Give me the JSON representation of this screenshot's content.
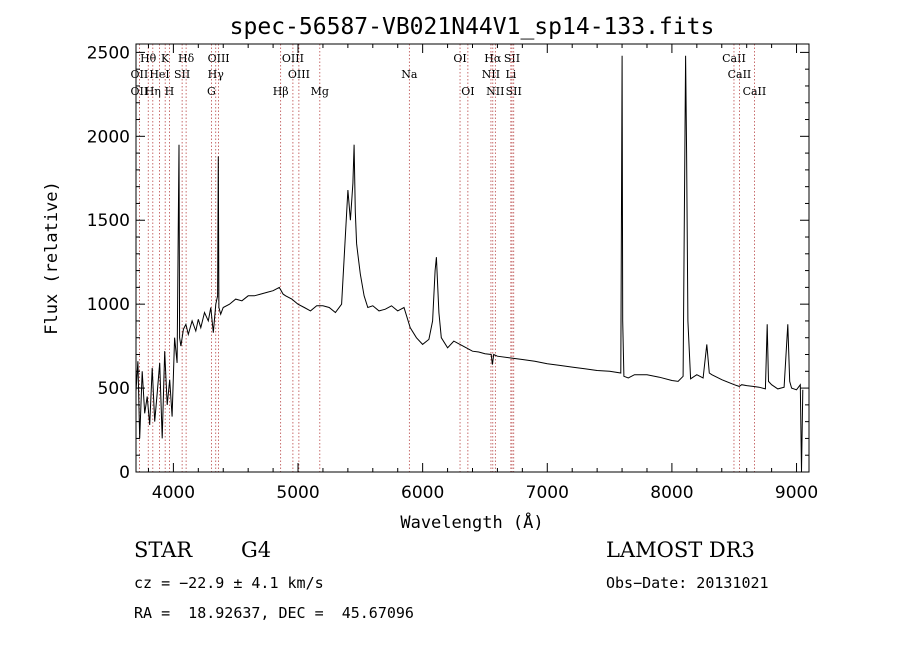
{
  "chart_data": {
    "type": "line",
    "title": "spec-56587-VB021N44V1_sp14-133.fits",
    "xlabel": "Wavelength (Å)",
    "ylabel": "Flux (relative)",
    "xlim": [
      3700,
      9100
    ],
    "ylim": [
      0,
      2550
    ],
    "xticks": [
      4000,
      5000,
      6000,
      7000,
      8000,
      9000
    ],
    "yticks": [
      0,
      500,
      1000,
      1500,
      2000,
      2500
    ],
    "spectral_lines": [
      {
        "label": "Hθ",
        "wavelength": 3798,
        "row": 1
      },
      {
        "label": "K",
        "wavelength": 3934,
        "row": 1
      },
      {
        "label": "Hδ",
        "wavelength": 4102,
        "row": 1
      },
      {
        "label": "OIII",
        "wavelength": 4363,
        "row": 1
      },
      {
        "label": "OIII",
        "wavelength": 4959,
        "row": 1
      },
      {
        "label": "OI",
        "wavelength": 6300,
        "row": 1
      },
      {
        "label": "Hα",
        "wavelength": 6563,
        "row": 1
      },
      {
        "label": "SII",
        "wavelength": 6717,
        "row": 1
      },
      {
        "label": "CaII",
        "wavelength": 8498,
        "row": 1
      },
      {
        "label": "OII",
        "wavelength": 3727,
        "row": 2
      },
      {
        "label": "HeI",
        "wavelength": 3889,
        "row": 2
      },
      {
        "label": "SII",
        "wavelength": 4070,
        "row": 2
      },
      {
        "label": "Hγ",
        "wavelength": 4340,
        "row": 2
      },
      {
        "label": "OIII",
        "wavelength": 5007,
        "row": 2
      },
      {
        "label": "Na",
        "wavelength": 5893,
        "row": 2
      },
      {
        "label": "NII",
        "wavelength": 6548,
        "row": 2
      },
      {
        "label": "Li",
        "wavelength": 6708,
        "row": 2
      },
      {
        "label": "CaII",
        "wavelength": 8542,
        "row": 2
      },
      {
        "label": "OII",
        "wavelength": 3727,
        "row": 3
      },
      {
        "label": "Hη",
        "wavelength": 3835,
        "row": 3
      },
      {
        "label": "H",
        "wavelength": 3968,
        "row": 3
      },
      {
        "label": "G",
        "wavelength": 4305,
        "row": 3
      },
      {
        "label": "Hβ",
        "wavelength": 4861,
        "row": 3
      },
      {
        "label": "Mg",
        "wavelength": 5175,
        "row": 3
      },
      {
        "label": "OI",
        "wavelength": 6363,
        "row": 3
      },
      {
        "label": "NII",
        "wavelength": 6583,
        "row": 3
      },
      {
        "label": "SII",
        "wavelength": 6731,
        "row": 3
      },
      {
        "label": "CaII",
        "wavelength": 8662,
        "row": 3
      }
    ],
    "series": [
      {
        "name": "flux",
        "x": [
          3700,
          3715,
          3730,
          3750,
          3770,
          3790,
          3810,
          3830,
          3850,
          3870,
          3890,
          3910,
          3930,
          3950,
          3970,
          3990,
          4010,
          4030,
          4040,
          4045,
          4050,
          4060,
          4080,
          4100,
          4120,
          4150,
          4180,
          4200,
          4220,
          4250,
          4280,
          4300,
          4320,
          4340,
          4355,
          4360,
          4365,
          4380,
          4400,
          4450,
          4500,
          4550,
          4600,
          4650,
          4700,
          4750,
          4800,
          4850,
          4880,
          4900,
          4950,
          5000,
          5050,
          5100,
          5150,
          5200,
          5250,
          5300,
          5350,
          5400,
          5420,
          5440,
          5450,
          5460,
          5470,
          5480,
          5500,
          5530,
          5560,
          5600,
          5650,
          5700,
          5750,
          5800,
          5850,
          5900,
          5950,
          6000,
          6050,
          6080,
          6100,
          6110,
          6120,
          6130,
          6150,
          6200,
          6250,
          6300,
          6350,
          6400,
          6450,
          6500,
          6550,
          6560,
          6570,
          6600,
          6700,
          6800,
          6900,
          7000,
          7100,
          7200,
          7300,
          7400,
          7500,
          7590,
          7600,
          7605,
          7615,
          7650,
          7700,
          7800,
          7900,
          8000,
          8050,
          8090,
          8110,
          8118,
          8128,
          8150,
          8200,
          8250,
          8280,
          8300,
          8320,
          8400,
          8500,
          8540,
          8560,
          8600,
          8650,
          8700,
          8750,
          8765,
          8775,
          8800,
          8850,
          8900,
          8930,
          8945,
          8960,
          9000,
          9030,
          9040,
          9050
        ],
        "y": [
          480,
          660,
          200,
          600,
          350,
          450,
          280,
          620,
          300,
          470,
          650,
          200,
          720,
          400,
          550,
          330,
          800,
          650,
          1550,
          1950,
          800,
          750,
          850,
          880,
          820,
          900,
          840,
          910,
          860,
          950,
          900,
          980,
          830,
          1000,
          1050,
          1880,
          980,
          940,
          980,
          1000,
          1030,
          1020,
          1050,
          1050,
          1060,
          1070,
          1080,
          1100,
          1060,
          1050,
          1030,
          1000,
          980,
          960,
          990,
          990,
          980,
          950,
          1000,
          1680,
          1500,
          1720,
          1950,
          1550,
          1360,
          1300,
          1180,
          1050,
          980,
          990,
          960,
          970,
          990,
          960,
          980,
          860,
          800,
          760,
          790,
          900,
          1200,
          1280,
          1120,
          950,
          800,
          740,
          780,
          760,
          740,
          720,
          715,
          705,
          700,
          640,
          700,
          690,
          680,
          670,
          660,
          645,
          635,
          625,
          615,
          605,
          600,
          590,
          2480,
          900,
          570,
          560,
          580,
          580,
          565,
          545,
          540,
          570,
          2480,
          1900,
          900,
          555,
          580,
          560,
          760,
          590,
          580,
          550,
          520,
          510,
          520,
          515,
          510,
          505,
          495,
          880,
          540,
          520,
          495,
          505,
          880,
          540,
          500,
          490,
          520,
          0,
          490
        ]
      }
    ]
  },
  "info": {
    "object_class": "STAR",
    "subclass": "G4",
    "survey": "LAMOST DR3",
    "cz": "cz = −22.9 ± 4.1 km/s",
    "obs_date": "Obs−Date: 20131021",
    "coords": "RA =  18.92637, DEC =  45.67096"
  }
}
